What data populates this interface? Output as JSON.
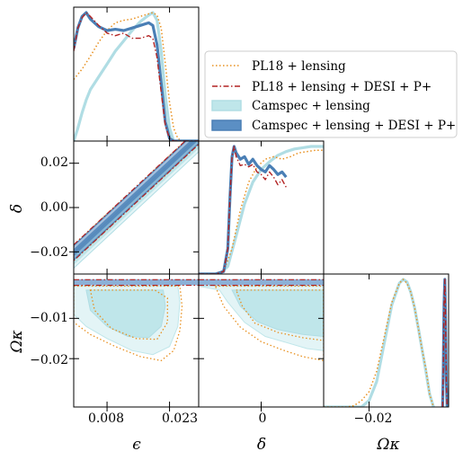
{
  "colors": {
    "pl18": "#e8901f",
    "pl18_desi": "#b22222",
    "camspec": "#b0dde4",
    "camspec_desi": "#4a7fb5",
    "camspec_fill": "#bfe6ea",
    "camspec_fill_outer": "#e3f4f6",
    "camspec_desi_fill": "#5b8fc4"
  },
  "chart_data": {
    "type": "triangle",
    "parameters": [
      {
        "name": "epsilon",
        "label": "ϵ",
        "ticks": [
          0.008,
          0.023
        ],
        "tick_labels": [
          "0.008",
          "0.023"
        ],
        "range": [
          0.0,
          0.03
        ]
      },
      {
        "name": "delta",
        "label": "δ",
        "ticks": [
          -0.02,
          0.0,
          0.02
        ],
        "tick_labels": [
          "−0.02",
          "0.00",
          "0.02"
        ],
        "range": [
          -0.03,
          0.03
        ]
      },
      {
        "name": "omega_k",
        "label": "Ωκ",
        "ticks": [
          -0.02,
          -0.01
        ],
        "tick_labels": [
          "−0.02",
          "−0.01"
        ],
        "range": [
          -0.032,
          0.001
        ]
      }
    ],
    "x_tick_labels_delta": [
      "0"
    ],
    "legend": {
      "placement": "upper-right",
      "entries": [
        {
          "label": "PL18 + lensing",
          "style": "dotted",
          "color_key": "pl18"
        },
        {
          "label": "PL18 + lensing + DESI + P+",
          "style": "dashdot",
          "color_key": "pl18_desi"
        },
        {
          "label": "Camspec + lensing",
          "style": "patch-light",
          "color_key": "camspec"
        },
        {
          "label": "Camspec + lensing + DESI + P+",
          "style": "patch-dark",
          "color_key": "camspec_desi"
        }
      ]
    },
    "series": [
      {
        "name": "PL18 + lensing",
        "marginal_epsilon": [
          [
            0.0,
            0.48
          ],
          [
            0.002,
            0.56
          ],
          [
            0.004,
            0.66
          ],
          [
            0.006,
            0.77
          ],
          [
            0.008,
            0.86
          ],
          [
            0.01,
            0.92
          ],
          [
            0.012,
            0.94
          ],
          [
            0.014,
            0.95
          ],
          [
            0.016,
            0.97
          ],
          [
            0.018,
            0.99
          ],
          [
            0.019,
            1.0
          ],
          [
            0.02,
            0.98
          ],
          [
            0.021,
            0.88
          ],
          [
            0.022,
            0.6
          ],
          [
            0.023,
            0.3
          ],
          [
            0.024,
            0.1
          ],
          [
            0.025,
            0.02
          ],
          [
            0.026,
            0.0
          ],
          [
            0.03,
            0.0
          ]
        ],
        "marginal_delta": [
          [
            -0.03,
            0.0
          ],
          [
            -0.022,
            0.0
          ],
          [
            -0.018,
            0.02
          ],
          [
            -0.014,
            0.2
          ],
          [
            -0.01,
            0.5
          ],
          [
            -0.006,
            0.72
          ],
          [
            -0.002,
            0.84
          ],
          [
            0.002,
            0.9
          ],
          [
            0.006,
            0.92
          ],
          [
            0.01,
            0.9
          ],
          [
            0.014,
            0.92
          ],
          [
            0.018,
            0.95
          ],
          [
            0.022,
            0.96
          ],
          [
            0.026,
            0.97
          ],
          [
            0.03,
            0.97
          ]
        ],
        "marginal_omega_k": [
          [
            -0.032,
            0.0
          ],
          [
            -0.026,
            0.0
          ],
          [
            -0.024,
            0.01
          ],
          [
            -0.022,
            0.05
          ],
          [
            -0.02,
            0.12
          ],
          [
            -0.018,
            0.28
          ],
          [
            -0.016,
            0.55
          ],
          [
            -0.014,
            0.82
          ],
          [
            -0.012,
            0.97
          ],
          [
            -0.011,
            1.0
          ],
          [
            -0.01,
            0.97
          ],
          [
            -0.009,
            0.9
          ],
          [
            -0.008,
            0.78
          ],
          [
            -0.007,
            0.62
          ],
          [
            -0.006,
            0.45
          ],
          [
            -0.005,
            0.3
          ],
          [
            -0.004,
            0.1
          ],
          [
            -0.003,
            0.0
          ]
        ]
      },
      {
        "name": "PL18 + lensing + DESI + P+",
        "marginal_epsilon": [
          [
            0.0,
            0.7
          ],
          [
            0.001,
            0.88
          ],
          [
            0.002,
            0.96
          ],
          [
            0.003,
            1.0
          ],
          [
            0.004,
            0.97
          ],
          [
            0.006,
            0.9
          ],
          [
            0.008,
            0.84
          ],
          [
            0.01,
            0.82
          ],
          [
            0.012,
            0.84
          ],
          [
            0.014,
            0.8
          ],
          [
            0.016,
            0.8
          ],
          [
            0.018,
            0.82
          ],
          [
            0.019,
            0.8
          ],
          [
            0.02,
            0.65
          ],
          [
            0.021,
            0.38
          ],
          [
            0.022,
            0.12
          ],
          [
            0.023,
            0.02
          ],
          [
            0.024,
            0.0
          ],
          [
            0.03,
            0.0
          ]
        ],
        "marginal_delta": [
          [
            -0.03,
            0.0
          ],
          [
            -0.022,
            0.0
          ],
          [
            -0.018,
            0.02
          ],
          [
            -0.016,
            0.2
          ],
          [
            -0.015,
            0.6
          ],
          [
            -0.014,
            0.92
          ],
          [
            -0.013,
            1.0
          ],
          [
            -0.012,
            0.92
          ],
          [
            -0.01,
            0.85
          ],
          [
            -0.008,
            0.86
          ],
          [
            -0.006,
            0.84
          ],
          [
            -0.004,
            0.86
          ],
          [
            -0.002,
            0.8
          ],
          [
            0.0,
            0.78
          ],
          [
            0.002,
            0.74
          ],
          [
            0.004,
            0.8
          ],
          [
            0.006,
            0.76
          ],
          [
            0.008,
            0.7
          ],
          [
            0.01,
            0.74
          ],
          [
            0.012,
            0.68
          ]
        ],
        "marginal_omega_k": [
          [
            -0.0006,
            0.0
          ],
          [
            -0.0004,
            0.3
          ],
          [
            -0.0002,
            0.8
          ],
          [
            0.0,
            1.0
          ],
          [
            0.0002,
            0.7
          ],
          [
            0.0004,
            0.2
          ],
          [
            0.0006,
            0.0
          ]
        ]
      },
      {
        "name": "Camspec + lensing",
        "marginal_epsilon": [
          [
            0.0,
            0.0
          ],
          [
            0.001,
            0.1
          ],
          [
            0.002,
            0.22
          ],
          [
            0.003,
            0.32
          ],
          [
            0.004,
            0.4
          ],
          [
            0.006,
            0.5
          ],
          [
            0.008,
            0.6
          ],
          [
            0.01,
            0.7
          ],
          [
            0.012,
            0.78
          ],
          [
            0.014,
            0.86
          ],
          [
            0.016,
            0.93
          ],
          [
            0.018,
            0.98
          ],
          [
            0.019,
            1.0
          ],
          [
            0.02,
            0.94
          ],
          [
            0.021,
            0.7
          ],
          [
            0.022,
            0.35
          ],
          [
            0.023,
            0.1
          ],
          [
            0.024,
            0.0
          ],
          [
            0.03,
            0.0
          ]
        ],
        "marginal_delta": [
          [
            -0.03,
            0.0
          ],
          [
            -0.02,
            0.0
          ],
          [
            -0.016,
            0.06
          ],
          [
            -0.012,
            0.3
          ],
          [
            -0.008,
            0.55
          ],
          [
            -0.004,
            0.72
          ],
          [
            0.0,
            0.82
          ],
          [
            0.004,
            0.88
          ],
          [
            0.008,
            0.93
          ],
          [
            0.012,
            0.96
          ],
          [
            0.016,
            0.98
          ],
          [
            0.02,
            0.99
          ],
          [
            0.024,
            1.0
          ],
          [
            0.03,
            1.0
          ]
        ],
        "marginal_omega_k": [
          [
            -0.032,
            0.0
          ],
          [
            -0.022,
            0.0
          ],
          [
            -0.02,
            0.05
          ],
          [
            -0.018,
            0.2
          ],
          [
            -0.016,
            0.5
          ],
          [
            -0.014,
            0.8
          ],
          [
            -0.012,
            0.97
          ],
          [
            -0.011,
            1.0
          ],
          [
            -0.01,
            0.98
          ],
          [
            -0.009,
            0.9
          ],
          [
            -0.008,
            0.78
          ],
          [
            -0.007,
            0.62
          ],
          [
            -0.006,
            0.45
          ],
          [
            -0.005,
            0.28
          ],
          [
            -0.004,
            0.1
          ],
          [
            -0.003,
            0.0
          ]
        ]
      },
      {
        "name": "Camspec + lensing + DESI + P+",
        "marginal_epsilon": [
          [
            0.0,
            0.72
          ],
          [
            0.001,
            0.88
          ],
          [
            0.002,
            0.97
          ],
          [
            0.003,
            1.0
          ],
          [
            0.004,
            0.95
          ],
          [
            0.006,
            0.89
          ],
          [
            0.008,
            0.86
          ],
          [
            0.01,
            0.87
          ],
          [
            0.012,
            0.86
          ],
          [
            0.014,
            0.88
          ],
          [
            0.016,
            0.9
          ],
          [
            0.018,
            0.92
          ],
          [
            0.019,
            0.9
          ],
          [
            0.02,
            0.75
          ],
          [
            0.021,
            0.45
          ],
          [
            0.022,
            0.15
          ],
          [
            0.023,
            0.02
          ],
          [
            0.024,
            0.0
          ],
          [
            0.03,
            0.0
          ]
        ],
        "marginal_delta": [
          [
            -0.03,
            0.0
          ],
          [
            -0.022,
            0.0
          ],
          [
            -0.018,
            0.02
          ],
          [
            -0.016,
            0.2
          ],
          [
            -0.015,
            0.6
          ],
          [
            -0.014,
            0.92
          ],
          [
            -0.013,
            1.0
          ],
          [
            -0.012,
            0.95
          ],
          [
            -0.01,
            0.9
          ],
          [
            -0.008,
            0.92
          ],
          [
            -0.006,
            0.86
          ],
          [
            -0.004,
            0.9
          ],
          [
            -0.002,
            0.85
          ],
          [
            0.0,
            0.82
          ],
          [
            0.002,
            0.8
          ],
          [
            0.004,
            0.85
          ],
          [
            0.006,
            0.82
          ],
          [
            0.008,
            0.78
          ],
          [
            0.01,
            0.8
          ],
          [
            0.012,
            0.76
          ]
        ],
        "marginal_omega_k": [
          [
            -0.0006,
            0.0
          ],
          [
            -0.0004,
            0.3
          ],
          [
            -0.0002,
            0.8
          ],
          [
            0.0,
            1.0
          ],
          [
            0.0002,
            0.7
          ],
          [
            0.0004,
            0.2
          ],
          [
            0.0006,
            0.0
          ]
        ]
      }
    ]
  }
}
